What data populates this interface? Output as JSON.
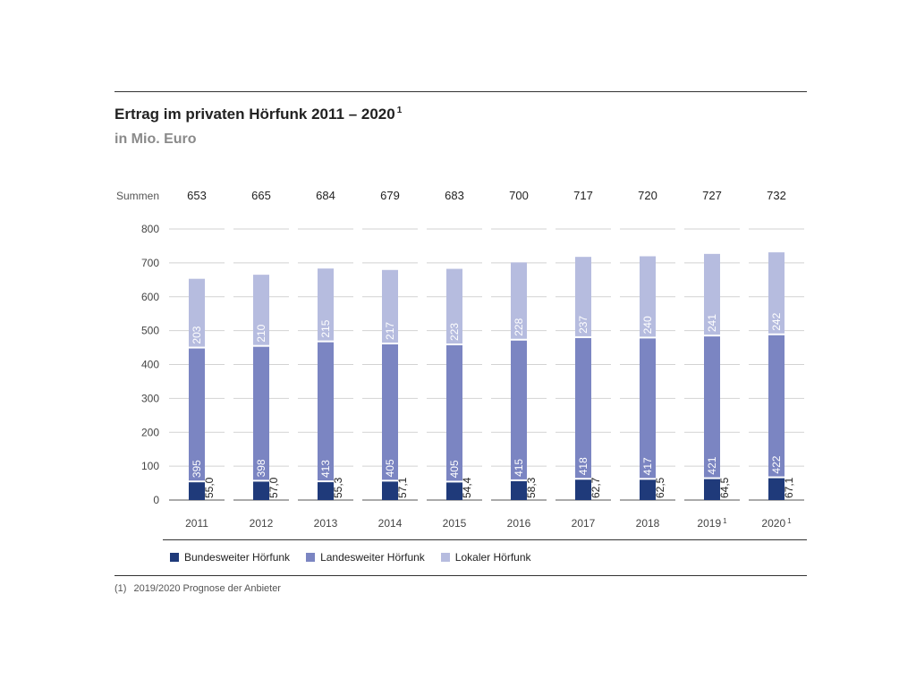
{
  "header": {
    "title": "Ertrag im privaten Hörfunk 2011 – 2020",
    "title_footnote_mark": "1",
    "subtitle": "in Mio. Euro"
  },
  "sums_label": "Summen",
  "footnote": {
    "number": "(1)",
    "text": "2019/2020 Prognose der Anbieter"
  },
  "colors": {
    "bundesweit": "#1f3a7a",
    "landesweit": "#7b85c2",
    "lokal": "#b6bcdf"
  },
  "chart_data": {
    "type": "bar",
    "stacked": true,
    "unit": "Mio. Euro",
    "categories": [
      "2011",
      "2012",
      "2013",
      "2014",
      "2015",
      "2016",
      "2017",
      "2018",
      "2019",
      "2020"
    ],
    "category_footnotes": [
      "",
      "",
      "",
      "",
      "",
      "",
      "",
      "",
      "1",
      "1"
    ],
    "sums": [
      "653",
      "665",
      "684",
      "679",
      "683",
      "700",
      "717",
      "720",
      "727",
      "732"
    ],
    "series": [
      {
        "name": "Bundesweiter Hörfunk",
        "values": [
          55.0,
          57.0,
          55.3,
          57.1,
          54.4,
          58.3,
          62.7,
          62.5,
          64.5,
          67.1
        ],
        "labels": [
          "55,0",
          "57,0",
          "55,3",
          "57,1",
          "54,4",
          "58,3",
          "62,7",
          "62,5",
          "64,5",
          "67,1"
        ]
      },
      {
        "name": "Landesweiter Hörfunk",
        "values": [
          395,
          398,
          413,
          405,
          405,
          415,
          418,
          417,
          421,
          422
        ],
        "labels": [
          "395",
          "398",
          "413",
          "405",
          "405",
          "415",
          "418",
          "417",
          "421",
          "422"
        ]
      },
      {
        "name": "Lokaler Hörfunk",
        "values": [
          203,
          210,
          215,
          217,
          223,
          228,
          237,
          240,
          241,
          242
        ],
        "labels": [
          "203",
          "210",
          "215",
          "217",
          "223",
          "228",
          "237",
          "240",
          "241",
          "242"
        ]
      }
    ],
    "ylim": [
      0,
      800
    ],
    "yticks": [
      0,
      100,
      200,
      300,
      400,
      500,
      600,
      700,
      800
    ],
    "grid": true,
    "legend_position": "bottom"
  }
}
